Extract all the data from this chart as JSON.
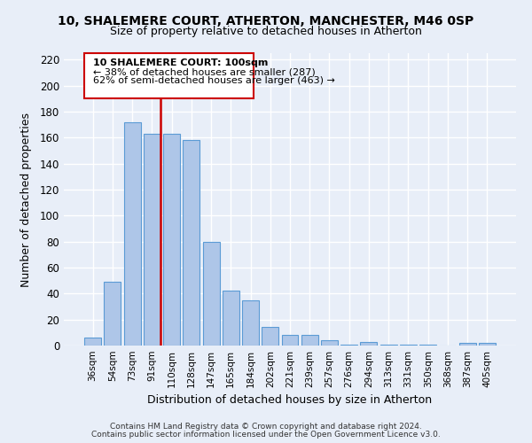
{
  "title": "10, SHALEMERE COURT, ATHERTON, MANCHESTER, M46 0SP",
  "subtitle": "Size of property relative to detached houses in Atherton",
  "xlabel": "Distribution of detached houses by size in Atherton",
  "ylabel": "Number of detached properties",
  "bar_labels": [
    "36sqm",
    "54sqm",
    "73sqm",
    "91sqm",
    "110sqm",
    "128sqm",
    "147sqm",
    "165sqm",
    "184sqm",
    "202sqm",
    "221sqm",
    "239sqm",
    "257sqm",
    "276sqm",
    "294sqm",
    "313sqm",
    "331sqm",
    "350sqm",
    "368sqm",
    "387sqm",
    "405sqm"
  ],
  "bar_values": [
    6,
    49,
    172,
    163,
    163,
    158,
    80,
    42,
    35,
    14,
    8,
    8,
    4,
    1,
    3,
    1,
    1,
    1,
    0,
    2,
    2
  ],
  "bar_color": "#aec6e8",
  "bar_edge_color": "#5b9bd5",
  "vline_color": "#cc0000",
  "annotation_title": "10 SHALEMERE COURT: 100sqm",
  "annotation_line1": "← 38% of detached houses are smaller (287)",
  "annotation_line2": "62% of semi-detached houses are larger (463) →",
  "annotation_box_color": "#cc0000",
  "ylim": [
    0,
    225
  ],
  "yticks": [
    0,
    20,
    40,
    60,
    80,
    100,
    120,
    140,
    160,
    180,
    200,
    220
  ],
  "footer1": "Contains HM Land Registry data © Crown copyright and database right 2024.",
  "footer2": "Contains public sector information licensed under the Open Government Licence v3.0.",
  "bg_color": "#e8eef8",
  "grid_color": "#ffffff"
}
